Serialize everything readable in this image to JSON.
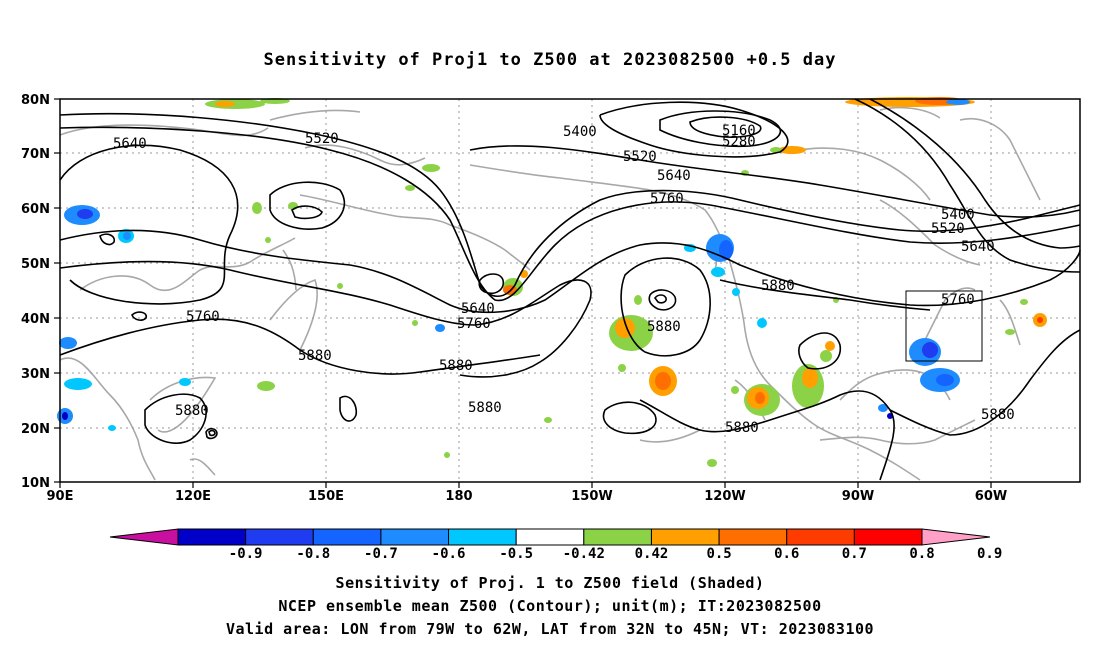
{
  "title": "Sensitivity of Proj1 to Z500 at 2023082500 +0.5 day",
  "lat_labels": [
    "80N",
    "70N",
    "60N",
    "50N",
    "40N",
    "30N",
    "20N",
    "10N"
  ],
  "lon_labels": [
    "90E",
    "120E",
    "150E",
    "180",
    "150W",
    "120W",
    "90W",
    "60W"
  ],
  "contour_labels": [
    "5640",
    "5520",
    "5400",
    "5160",
    "5280",
    "5520",
    "5640",
    "5760",
    "5400",
    "5520",
    "5640",
    "5760",
    "5640",
    "5760",
    "5760",
    "5880",
    "5880",
    "5880",
    "5880",
    "5880",
    "5880",
    "5880",
    "5880"
  ],
  "colorbar": {
    "labels": [
      "-0.9",
      "-0.8",
      "-0.7",
      "-0.6",
      "-0.5",
      "-0.42",
      "0.42",
      "0.5",
      "0.6",
      "0.7",
      "0.8",
      "0.9"
    ],
    "colors": [
      "#c80fa0",
      "#0000c8",
      "#1f3cf0",
      "#1464ff",
      "#1e8cff",
      "#00c8ff",
      "#ffffff",
      "#8cd246",
      "#ffa000",
      "#ff6e00",
      "#ff3c00",
      "#ff0000",
      "#ffa0c8"
    ]
  },
  "captions": {
    "line1": "Sensitivity of Proj. 1 to Z500 field (Shaded)",
    "line2": "NCEP ensemble mean Z500 (Contour); unit(m); IT:2023082500",
    "line3": "Valid area: LON from 79W to 62W, LAT from 32N to 45N; VT: 2023083100"
  }
}
